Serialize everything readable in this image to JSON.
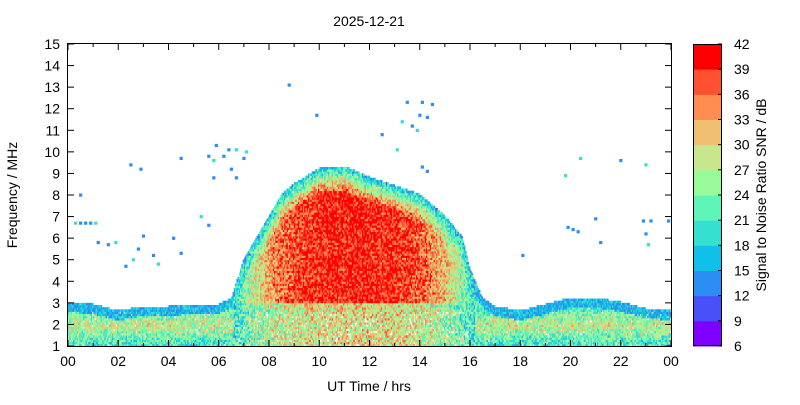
{
  "chart_data": {
    "type": "heatmap",
    "title": "2025-12-21",
    "xlabel": "UT Time / hrs",
    "ylabel": "Frequency / MHz",
    "colorbar_label": "Signal to Noise Ratio SNR / dB",
    "x_ticks": [
      "00",
      "02",
      "04",
      "06",
      "08",
      "10",
      "12",
      "14",
      "16",
      "18",
      "20",
      "22",
      "00"
    ],
    "xlim": [
      0,
      24
    ],
    "y_ticks": [
      1,
      2,
      3,
      4,
      5,
      6,
      7,
      8,
      9,
      10,
      11,
      12,
      13,
      14,
      15
    ],
    "ylim": [
      1,
      15
    ],
    "colorbar_ticks": [
      6,
      9,
      12,
      15,
      18,
      21,
      24,
      27,
      30,
      33,
      36,
      39,
      42
    ],
    "clim": [
      6,
      42
    ],
    "colorbar_colors": [
      "#8000ff",
      "#4a50f7",
      "#2c8ef2",
      "#10c0e8",
      "#35e0d0",
      "#60f5b8",
      "#98fb98",
      "#c8e68c",
      "#f0c070",
      "#ff8c50",
      "#ff5030",
      "#ff0000"
    ],
    "grid": false,
    "envelope": [
      {
        "x": 0.0,
        "y": 3.0
      },
      {
        "x": 1.0,
        "y": 2.9
      },
      {
        "x": 2.0,
        "y": 2.6
      },
      {
        "x": 3.0,
        "y": 2.8
      },
      {
        "x": 4.0,
        "y": 2.8
      },
      {
        "x": 5.0,
        "y": 2.9
      },
      {
        "x": 6.0,
        "y": 2.9
      },
      {
        "x": 6.5,
        "y": 3.2
      },
      {
        "x": 7.0,
        "y": 5.0
      },
      {
        "x": 7.5,
        "y": 6.0
      },
      {
        "x": 8.0,
        "y": 7.0
      },
      {
        "x": 8.5,
        "y": 8.0
      },
      {
        "x": 9.0,
        "y": 8.5
      },
      {
        "x": 10.0,
        "y": 9.2
      },
      {
        "x": 11.0,
        "y": 9.3
      },
      {
        "x": 12.0,
        "y": 8.8
      },
      {
        "x": 13.0,
        "y": 8.4
      },
      {
        "x": 14.0,
        "y": 8.0
      },
      {
        "x": 15.0,
        "y": 7.0
      },
      {
        "x": 15.7,
        "y": 6.0
      },
      {
        "x": 16.0,
        "y": 4.5
      },
      {
        "x": 16.5,
        "y": 3.2
      },
      {
        "x": 17.0,
        "y": 2.8
      },
      {
        "x": 18.0,
        "y": 2.6
      },
      {
        "x": 19.0,
        "y": 2.9
      },
      {
        "x": 20.0,
        "y": 3.2
      },
      {
        "x": 21.0,
        "y": 3.2
      },
      {
        "x": 22.0,
        "y": 3.0
      },
      {
        "x": 23.0,
        "y": 2.7
      },
      {
        "x": 24.0,
        "y": 2.6
      }
    ],
    "sporadic_points": [
      {
        "x": 0.3,
        "y": 6.7
      },
      {
        "x": 0.5,
        "y": 6.7
      },
      {
        "x": 0.7,
        "y": 6.7
      },
      {
        "x": 0.9,
        "y": 6.7
      },
      {
        "x": 1.1,
        "y": 6.7
      },
      {
        "x": 0.5,
        "y": 8.0
      },
      {
        "x": 1.2,
        "y": 5.8
      },
      {
        "x": 1.6,
        "y": 5.7
      },
      {
        "x": 1.9,
        "y": 5.8
      },
      {
        "x": 2.5,
        "y": 9.4
      },
      {
        "x": 2.9,
        "y": 9.2
      },
      {
        "x": 2.3,
        "y": 4.7
      },
      {
        "x": 2.6,
        "y": 5.0
      },
      {
        "x": 2.8,
        "y": 5.5
      },
      {
        "x": 3.0,
        "y": 6.1
      },
      {
        "x": 3.4,
        "y": 5.2
      },
      {
        "x": 3.6,
        "y": 4.8
      },
      {
        "x": 4.2,
        "y": 6.0
      },
      {
        "x": 4.5,
        "y": 5.3
      },
      {
        "x": 4.5,
        "y": 9.7
      },
      {
        "x": 5.3,
        "y": 7.0
      },
      {
        "x": 5.6,
        "y": 6.6
      },
      {
        "x": 5.8,
        "y": 8.8
      },
      {
        "x": 5.6,
        "y": 9.8
      },
      {
        "x": 5.8,
        "y": 9.6
      },
      {
        "x": 5.9,
        "y": 10.3
      },
      {
        "x": 6.2,
        "y": 9.8
      },
      {
        "x": 6.4,
        "y": 10.1
      },
      {
        "x": 6.7,
        "y": 10.1
      },
      {
        "x": 6.5,
        "y": 9.2
      },
      {
        "x": 6.7,
        "y": 8.8
      },
      {
        "x": 7.0,
        "y": 9.7
      },
      {
        "x": 7.1,
        "y": 10.0
      },
      {
        "x": 8.8,
        "y": 13.1
      },
      {
        "x": 9.9,
        "y": 11.7
      },
      {
        "x": 12.5,
        "y": 10.8
      },
      {
        "x": 13.3,
        "y": 11.4
      },
      {
        "x": 13.5,
        "y": 12.3
      },
      {
        "x": 13.7,
        "y": 11.2
      },
      {
        "x": 14.0,
        "y": 11.7
      },
      {
        "x": 13.9,
        "y": 11.0
      },
      {
        "x": 14.3,
        "y": 11.6
      },
      {
        "x": 14.5,
        "y": 12.2
      },
      {
        "x": 14.1,
        "y": 12.3
      },
      {
        "x": 13.1,
        "y": 10.1
      },
      {
        "x": 14.1,
        "y": 9.3
      },
      {
        "x": 14.3,
        "y": 9.1
      },
      {
        "x": 18.1,
        "y": 5.2
      },
      {
        "x": 19.8,
        "y": 8.9
      },
      {
        "x": 19.9,
        "y": 6.5
      },
      {
        "x": 20.1,
        "y": 6.4
      },
      {
        "x": 20.3,
        "y": 6.3
      },
      {
        "x": 20.4,
        "y": 9.7
      },
      {
        "x": 21.0,
        "y": 6.9
      },
      {
        "x": 21.2,
        "y": 5.8
      },
      {
        "x": 22.0,
        "y": 9.6
      },
      {
        "x": 23.0,
        "y": 9.4
      },
      {
        "x": 22.9,
        "y": 6.8
      },
      {
        "x": 23.2,
        "y": 6.8
      },
      {
        "x": 23.0,
        "y": 6.2
      },
      {
        "x": 23.1,
        "y": 5.7
      },
      {
        "x": 23.9,
        "y": 6.8
      }
    ]
  }
}
